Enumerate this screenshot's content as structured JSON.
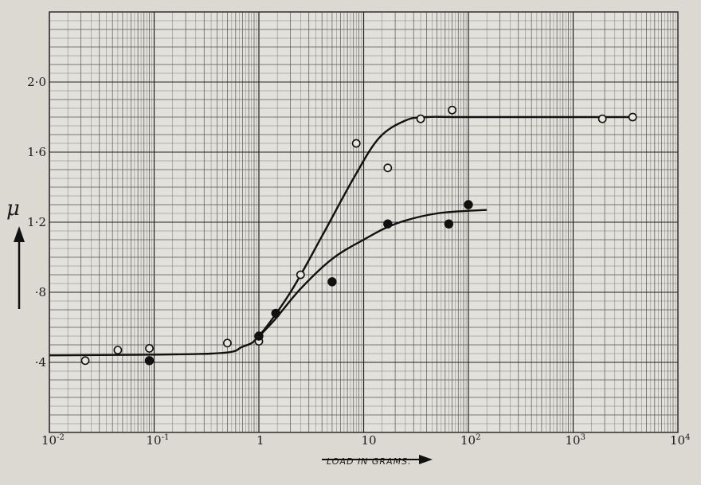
{
  "chart_data": {
    "type": "scatter",
    "title": "",
    "xlabel": "LOAD IN GRAMS.",
    "ylabel": "μ",
    "x_scale": "log",
    "xlim": [
      0.01,
      10000
    ],
    "ylim": [
      0.0,
      2.4
    ],
    "grid": true,
    "x_ticks": [
      {
        "value": 0.01,
        "base": "10",
        "exp": "-2"
      },
      {
        "value": 0.1,
        "base": "10",
        "exp": "-1"
      },
      {
        "value": 1,
        "base": "1",
        "exp": ""
      },
      {
        "value": 10,
        "base": "10",
        "exp": ""
      },
      {
        "value": 100,
        "base": "10",
        "exp": "2"
      },
      {
        "value": 1000,
        "base": "10",
        "exp": "3"
      },
      {
        "value": 10000,
        "base": "10",
        "exp": "4"
      }
    ],
    "y_ticks": [
      {
        "value": 0.4,
        "label": "·4"
      },
      {
        "value": 0.8,
        "label": "·8"
      },
      {
        "value": 1.2,
        "label": "1·2"
      },
      {
        "value": 1.6,
        "label": "1·6"
      },
      {
        "value": 2.0,
        "label": "2·0"
      }
    ],
    "series": [
      {
        "marker": "open-circle",
        "points": [
          [
            0.022,
            0.41
          ],
          [
            0.045,
            0.47
          ],
          [
            0.09,
            0.48
          ],
          [
            0.5,
            0.51
          ],
          [
            1.0,
            0.52
          ],
          [
            2.5,
            0.9
          ],
          [
            8.5,
            1.65
          ],
          [
            17,
            1.51
          ],
          [
            35,
            1.79
          ],
          [
            70,
            1.84
          ],
          [
            1900,
            1.79
          ],
          [
            3700,
            1.8
          ]
        ],
        "curve": [
          [
            0.01,
            0.44
          ],
          [
            0.35,
            0.45
          ],
          [
            0.7,
            0.49
          ],
          [
            1.0,
            0.55
          ],
          [
            2.0,
            0.8
          ],
          [
            4.0,
            1.12
          ],
          [
            8.0,
            1.45
          ],
          [
            14,
            1.68
          ],
          [
            25,
            1.78
          ],
          [
            40,
            1.8
          ],
          [
            100,
            1.8
          ],
          [
            3700,
            1.8
          ]
        ]
      },
      {
        "marker": "filled-circle",
        "points": [
          [
            0.09,
            0.41
          ],
          [
            1.0,
            0.55
          ],
          [
            1.45,
            0.68
          ],
          [
            5.0,
            0.86
          ],
          [
            17,
            1.19
          ],
          [
            65,
            1.19
          ],
          [
            100,
            1.3
          ]
        ],
        "curve": [
          [
            0.9,
            0.52
          ],
          [
            1.4,
            0.64
          ],
          [
            2.5,
            0.82
          ],
          [
            5.0,
            0.99
          ],
          [
            10,
            1.1
          ],
          [
            20,
            1.19
          ],
          [
            50,
            1.25
          ],
          [
            150,
            1.27
          ]
        ]
      }
    ]
  }
}
